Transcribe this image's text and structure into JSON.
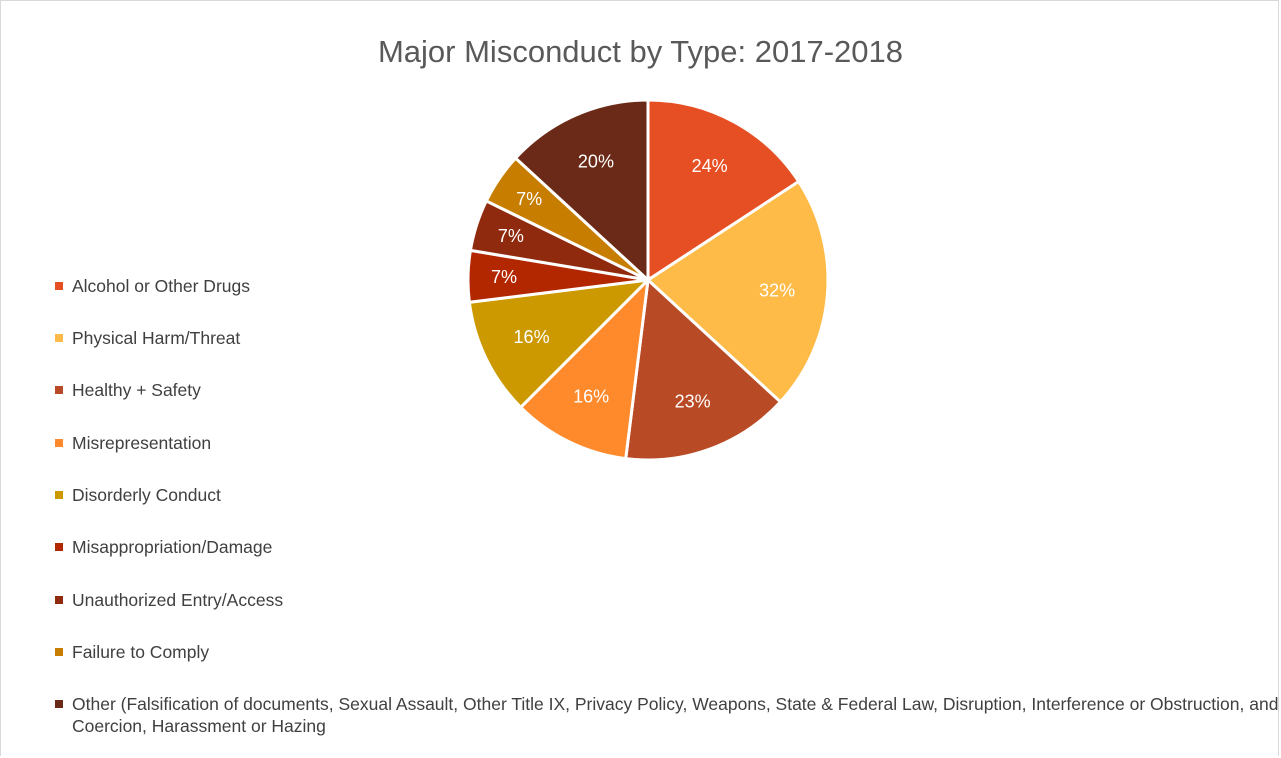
{
  "chart_data": {
    "type": "pie",
    "title": "Major Misconduct by Type: 2017-2018",
    "categories": [
      "Alcohol or Other Drugs",
      "Physical Harm/Threat",
      "Healthy + Safety",
      "Misrepresentation",
      "Disorderly Conduct",
      "Misappropriation/Damage",
      "Unauthorized Entry/Access",
      "Failure to Comply",
      "Other (Falsification of documents, Sexual Assault, Other Title IX, Privacy Policy, Weapons, State & Federal Law, Disruption, Interference or Obstruction, and Coercion, Harassment or Hazing"
    ],
    "values": [
      24,
      32,
      23,
      16,
      16,
      7,
      7,
      7,
      20
    ],
    "labels": [
      "24%",
      "32%",
      "23%",
      "16%",
      "16%",
      "7%",
      "7%",
      "7%",
      "20%"
    ],
    "colors": [
      "#e64e23",
      "#ffbb47",
      "#b84a25",
      "#ff8a2b",
      "#cc9a00",
      "#b32700",
      "#8f2a0f",
      "#c77e00",
      "#6b2a17"
    ],
    "legend_position": "left"
  }
}
